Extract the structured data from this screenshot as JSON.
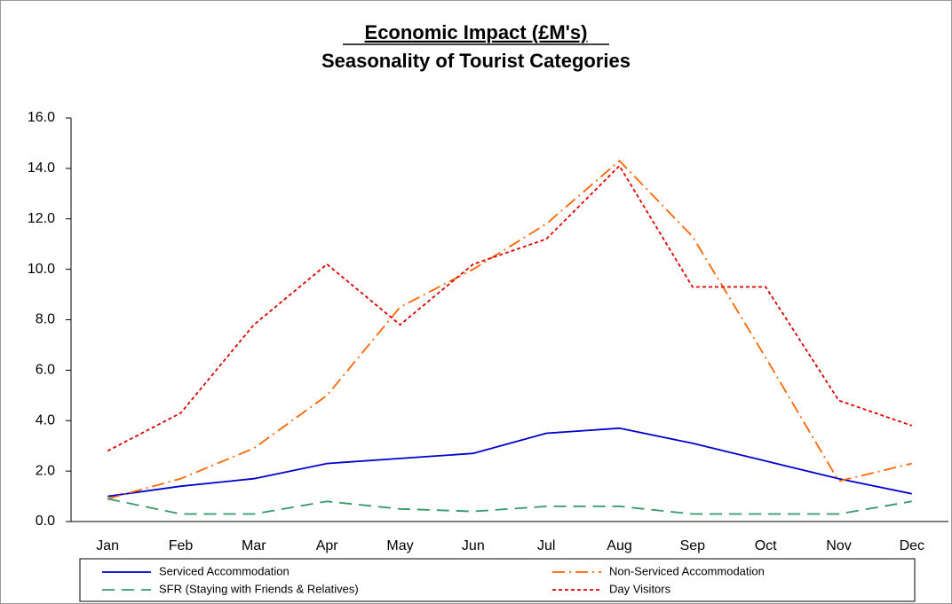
{
  "chart_data": {
    "type": "line",
    "title": "Economic Impact (£M's)",
    "subtitle": "Seasonality of Tourist Categories",
    "categories": [
      "Jan",
      "Feb",
      "Mar",
      "Apr",
      "May",
      "Jun",
      "Jul",
      "Aug",
      "Sep",
      "Oct",
      "Nov",
      "Dec"
    ],
    "series": [
      {
        "name": "Serviced Accommodation",
        "color": "#0000cc",
        "style": "solid",
        "values": [
          1.0,
          1.4,
          1.7,
          2.3,
          2.5,
          2.7,
          3.5,
          3.7,
          3.1,
          2.4,
          1.7,
          1.1
        ]
      },
      {
        "name": "Non-Serviced Accommodation",
        "color": "#ff6600",
        "style": "dash-dot",
        "values": [
          0.9,
          1.7,
          2.9,
          5.0,
          8.5,
          10.0,
          11.8,
          14.3,
          11.3,
          6.5,
          1.6,
          2.3
        ]
      },
      {
        "name": "SFR (Staying with Friends & Relatives)",
        "color": "#339966",
        "style": "dash",
        "values": [
          0.9,
          0.3,
          0.3,
          0.8,
          0.5,
          0.4,
          0.6,
          0.6,
          0.3,
          0.3,
          0.3,
          0.8
        ]
      },
      {
        "name": "Day Visitors",
        "color": "#dd0000",
        "style": "dot",
        "values": [
          2.8,
          4.3,
          7.8,
          10.2,
          7.8,
          10.2,
          11.2,
          14.1,
          9.3,
          9.3,
          4.8,
          3.8
        ]
      }
    ],
    "ylim": [
      0,
      16
    ],
    "yticks": [
      {
        "value": 0,
        "label": "0.0"
      },
      {
        "value": 2,
        "label": "2.0"
      },
      {
        "value": 4,
        "label": "4.0"
      },
      {
        "value": 6,
        "label": "6.0"
      },
      {
        "value": 8,
        "label": "8.0"
      },
      {
        "value": 10,
        "label": "10.0"
      },
      {
        "value": 12,
        "label": "12.0"
      },
      {
        "value": 14,
        "label": "14.0"
      },
      {
        "value": 16,
        "label": "16.0"
      }
    ],
    "grid": false
  }
}
